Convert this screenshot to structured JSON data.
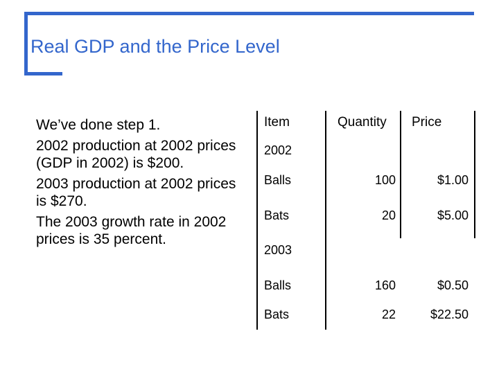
{
  "slide": {
    "title": "Real GDP and the Price Level",
    "bullets": [
      "We’ve done step 1.",
      "2002 production at 2002 prices (GDP in 2002) is $200.",
      "2003 production at 2002 prices is $270.",
      "The 2003 growth rate in 2002 prices is 35 percent."
    ]
  },
  "table": {
    "headers": {
      "item": "Item",
      "quantity": "Quantity",
      "price": "Price"
    },
    "sections": [
      {
        "year": "2002",
        "rows": [
          {
            "item": "Balls",
            "quantity": "100",
            "price": "$1.00"
          },
          {
            "item": "Bats",
            "quantity": "20",
            "price": "$5.00"
          }
        ]
      },
      {
        "year": "2003",
        "rows": [
          {
            "item": "Balls",
            "quantity": "160",
            "price": "$0.50"
          },
          {
            "item": "Bats",
            "quantity": "22",
            "price": "$22.50"
          }
        ]
      }
    ]
  },
  "colors": {
    "accent": "#3366cc"
  }
}
